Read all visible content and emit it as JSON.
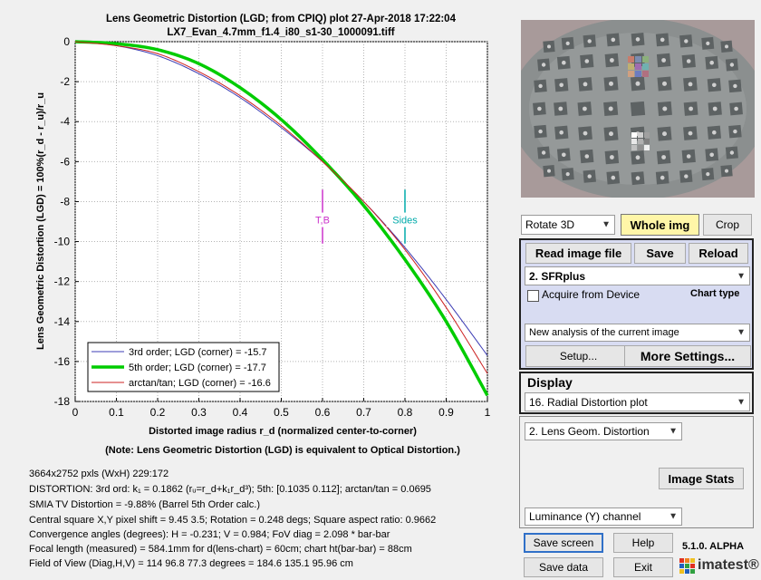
{
  "chart_data": {
    "type": "line",
    "title": "Lens Geometric Distortion (LGD; from CPIQ) plot   27-Apr-2018 17:22:04",
    "subtitle": "LX7_Evan_4.7mm_f1.4_i80_s1-30_1000091.tiff",
    "xlabel": "Distorted image radius r_d  (normalized center-to-corner)",
    "ylabel": "Lens Geometric Distortion (LGD) = 100%(r_d - r_u)/r_u",
    "note": "(Note: Lens Geometric Distortion (LGD) is equivalent to Optical Distortion.)",
    "xlim": [
      0,
      1
    ],
    "ylim": [
      -18,
      0
    ],
    "xticks": [
      "0",
      "0.1",
      "0.2",
      "0.3",
      "0.4",
      "0.5",
      "0.6",
      "0.7",
      "0.8",
      "0.9",
      "1"
    ],
    "yticks": [
      "0",
      "-2",
      "-4",
      "-6",
      "-8",
      "-10",
      "-12",
      "-14",
      "-16",
      "-18"
    ],
    "grid": true,
    "legend_position": "bottom-left",
    "series": [
      {
        "name": "3rd order;   LGD (corner) = -15.7",
        "color": "#3c3cb4",
        "width": 1,
        "x": [
          0,
          0.1,
          0.2,
          0.3,
          0.4,
          0.5,
          0.6,
          0.7,
          0.8,
          0.9,
          1.0
        ],
        "y": [
          0,
          -0.2,
          -0.7,
          -1.6,
          -2.8,
          -4.3,
          -6.0,
          -8.0,
          -10.3,
          -12.9,
          -15.7
        ]
      },
      {
        "name": "5th order;   LGD (corner) = -17.7",
        "color": "#00cc00",
        "width": 3.5,
        "x": [
          0,
          0.1,
          0.2,
          0.3,
          0.4,
          0.5,
          0.6,
          0.7,
          0.8,
          0.9,
          1.0
        ],
        "y": [
          0,
          -0.1,
          -0.4,
          -1.1,
          -2.3,
          -3.9,
          -5.9,
          -8.2,
          -10.9,
          -14.0,
          -17.7
        ]
      },
      {
        "name": "arctan/tan; LGD (corner) = -16.6",
        "color": "#cc2020",
        "width": 1,
        "x": [
          0,
          0.1,
          0.2,
          0.3,
          0.4,
          0.5,
          0.6,
          0.7,
          0.8,
          0.9,
          1.0
        ],
        "y": [
          0,
          -0.2,
          -0.6,
          -1.5,
          -2.7,
          -4.2,
          -6.0,
          -8.0,
          -10.4,
          -13.3,
          -16.6
        ]
      }
    ],
    "markers": [
      {
        "label": "T,B",
        "x": 0.6,
        "color": "#cc33cc"
      },
      {
        "label": "Sides",
        "x": 0.8,
        "color": "#00aaaa"
      }
    ]
  },
  "info": [
    "3664x2752 pxls (WxH) 229:172",
    "DISTORTION:  3rd ord:  k₁ = 0.1862  (rᵤ=r_d+k₁r_d³);   5th: [0.1035  0.112];   arctan/tan = 0.0695",
    "SMIA TV Distortion = -9.88%  (Barrel  5th Order calc.)",
    "Central square X,Y pixel shift = 9.45  3.5;   Rotation = 0.248 degs;   Square aspect ratio: 0.9662",
    "Convergence angles (degrees):  H = -0.231;  V = 0.984;   FoV diag = 2.098 * bar-bar",
    "Focal length (measured) = 584.1mm  for d(lens-chart) = 60cm;  chart ht(bar-bar) = 88cm",
    "Field of View (Diag,H,V) = 114     96.8     77.3 degrees   =  184.6     135.1     95.96 cm"
  ],
  "controls": {
    "rotate": "Rotate 3D",
    "whole_img": "Whole img",
    "crop": "Crop",
    "read_file": "Read image file",
    "save": "Save",
    "reload": "Reload",
    "chart_select": "2. SFRplus",
    "acquire": "Acquire from Device",
    "chart_type": "Chart type",
    "analysis_select": "New analysis of the current image",
    "setup": "Setup...",
    "more_settings": "More Settings...",
    "display_label": "Display",
    "display_select": "16. Radial Distortion plot",
    "lens_select": "2. Lens Geom. Distortion",
    "image_stats": "Image Stats",
    "channel_select": "Luminance (Y) channel",
    "save_screen": "Save screen",
    "help": "Help",
    "version": "5.1.0. ALPHA",
    "save_data": "Save data",
    "exit": "Exit",
    "logo": "imatest®"
  }
}
